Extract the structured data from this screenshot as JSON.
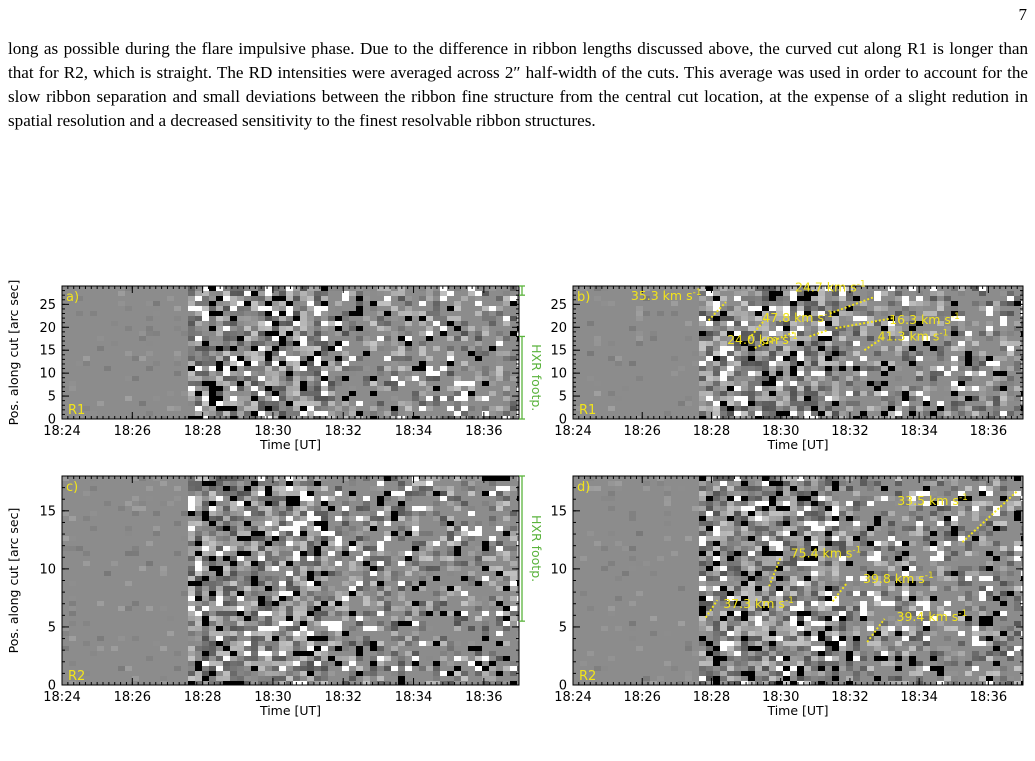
{
  "page_number": "7",
  "paragraph": "long as possible during the flare impulsive phase. Due to the difference in ribbon lengths discussed above, the curved cut along R1 is longer than that for R2, which is straight. The RD intensities were averaged across 2″ half-width of the cuts. This average was used in order to account for the slow ribbon separation and small deviations between the ribbon fine structure from the central cut location, at the expense of a slight redution in spatial resolution and a decreased sensitivity to the finest resolvable ribbon structures.",
  "colors": {
    "annotation_yellow": "#f2e41a",
    "hxr_green": "#5ab33c",
    "background_gray": "#8c8c8c"
  },
  "chart_data": [
    {
      "type": "heatmap",
      "panel": "a)",
      "ribbon_label": "R1",
      "xlabel": "Time [UT]",
      "ylabel": "Pos. along cut [arc sec]",
      "x_ticks": [
        "18:24",
        "18:26",
        "18:28",
        "18:30",
        "18:32",
        "18:34",
        "18:36"
      ],
      "y_ticks": [
        "0",
        "5",
        "10",
        "15",
        "20",
        "25"
      ],
      "xlim": [
        "18:24",
        "18:37"
      ],
      "ylim": [
        0,
        29
      ],
      "hxr_label": "HXR footp.",
      "hxr_ranges": [
        [
          0,
          18
        ],
        [
          27,
          29.5
        ]
      ]
    },
    {
      "type": "heatmap",
      "panel": "b)",
      "ribbon_label": "R1",
      "xlabel": "Time [UT]",
      "ylabel": "",
      "x_ticks": [
        "18:24",
        "18:26",
        "18:28",
        "18:30",
        "18:32",
        "18:34",
        "18:36"
      ],
      "y_ticks": [
        "0",
        "5",
        "10",
        "15",
        "20",
        "25"
      ],
      "xlim": [
        "18:24",
        "18:37"
      ],
      "ylim": [
        0,
        29
      ],
      "speed_unit": "km s",
      "speed_unit_exp": "-1",
      "speeds": [
        {
          "value": "35.3",
          "x": [
            "18:27:55",
            "18:28:25"
          ],
          "y": [
            21.5,
            25.5
          ]
        },
        {
          "value": "47.8",
          "x": [
            "18:29:05",
            "18:29:35"
          ],
          "y": [
            17.5,
            22.0
          ]
        },
        {
          "value": "24.0",
          "x": [
            "18:29:15",
            "18:30:25"
          ],
          "y": [
            15.5,
            19.0
          ]
        },
        {
          "value": "24.7",
          "x": [
            "18:31:25",
            "18:32:40"
          ],
          "y": [
            23.0,
            26.5
          ]
        },
        {
          "value": "16.3",
          "x": [
            "18:31:35",
            "18:33:15"
          ],
          "y": [
            19.8,
            22.0
          ]
        },
        {
          "value": "41.3",
          "x": [
            "18:32:25",
            "18:32:55"
          ],
          "y": [
            15.0,
            17.5
          ]
        },
        {
          "value": "",
          "x": [
            "18:30:50",
            "18:31:20"
          ],
          "y": [
            18.0,
            19.3
          ]
        }
      ]
    },
    {
      "type": "heatmap",
      "panel": "c)",
      "ribbon_label": "R2",
      "xlabel": "Time [UT]",
      "ylabel": "Pos. along cut [arc sec]",
      "x_ticks": [
        "18:24",
        "18:26",
        "18:28",
        "18:30",
        "18:32",
        "18:34",
        "18:36"
      ],
      "y_ticks": [
        "0",
        "5",
        "10",
        "15"
      ],
      "xlim": [
        "18:24",
        "18:37"
      ],
      "ylim": [
        0,
        18
      ],
      "hxr_label": "HXR footp.",
      "hxr_ranges": [
        [
          5.5,
          18
        ]
      ]
    },
    {
      "type": "heatmap",
      "panel": "d)",
      "ribbon_label": "R2",
      "xlabel": "Time [UT]",
      "ylabel": "",
      "x_ticks": [
        "18:24",
        "18:26",
        "18:28",
        "18:30",
        "18:32",
        "18:34",
        "18:36"
      ],
      "y_ticks": [
        "0",
        "5",
        "10",
        "15"
      ],
      "xlim": [
        "18:24",
        "18:37"
      ],
      "ylim": [
        0,
        18
      ],
      "speed_unit": "km s",
      "speed_unit_exp": "-1",
      "speeds": [
        {
          "value": "37.3",
          "x": [
            "18:27:50",
            "18:28:10"
          ],
          "y": [
            5.8,
            7.3
          ]
        },
        {
          "value": "75.4",
          "x": [
            "18:29:40",
            "18:30:00"
          ],
          "y": [
            8.5,
            11.0
          ]
        },
        {
          "value": "39.8",
          "x": [
            "18:31:30",
            "18:31:55"
          ],
          "y": [
            7.2,
            8.8
          ]
        },
        {
          "value": "39.4",
          "x": [
            "18:32:30",
            "18:33:00"
          ],
          "y": [
            3.7,
            5.7
          ]
        },
        {
          "value": "33.5",
          "x": [
            "18:35:15",
            "18:36:50"
          ],
          "y": [
            12.3,
            16.7
          ]
        }
      ]
    }
  ]
}
